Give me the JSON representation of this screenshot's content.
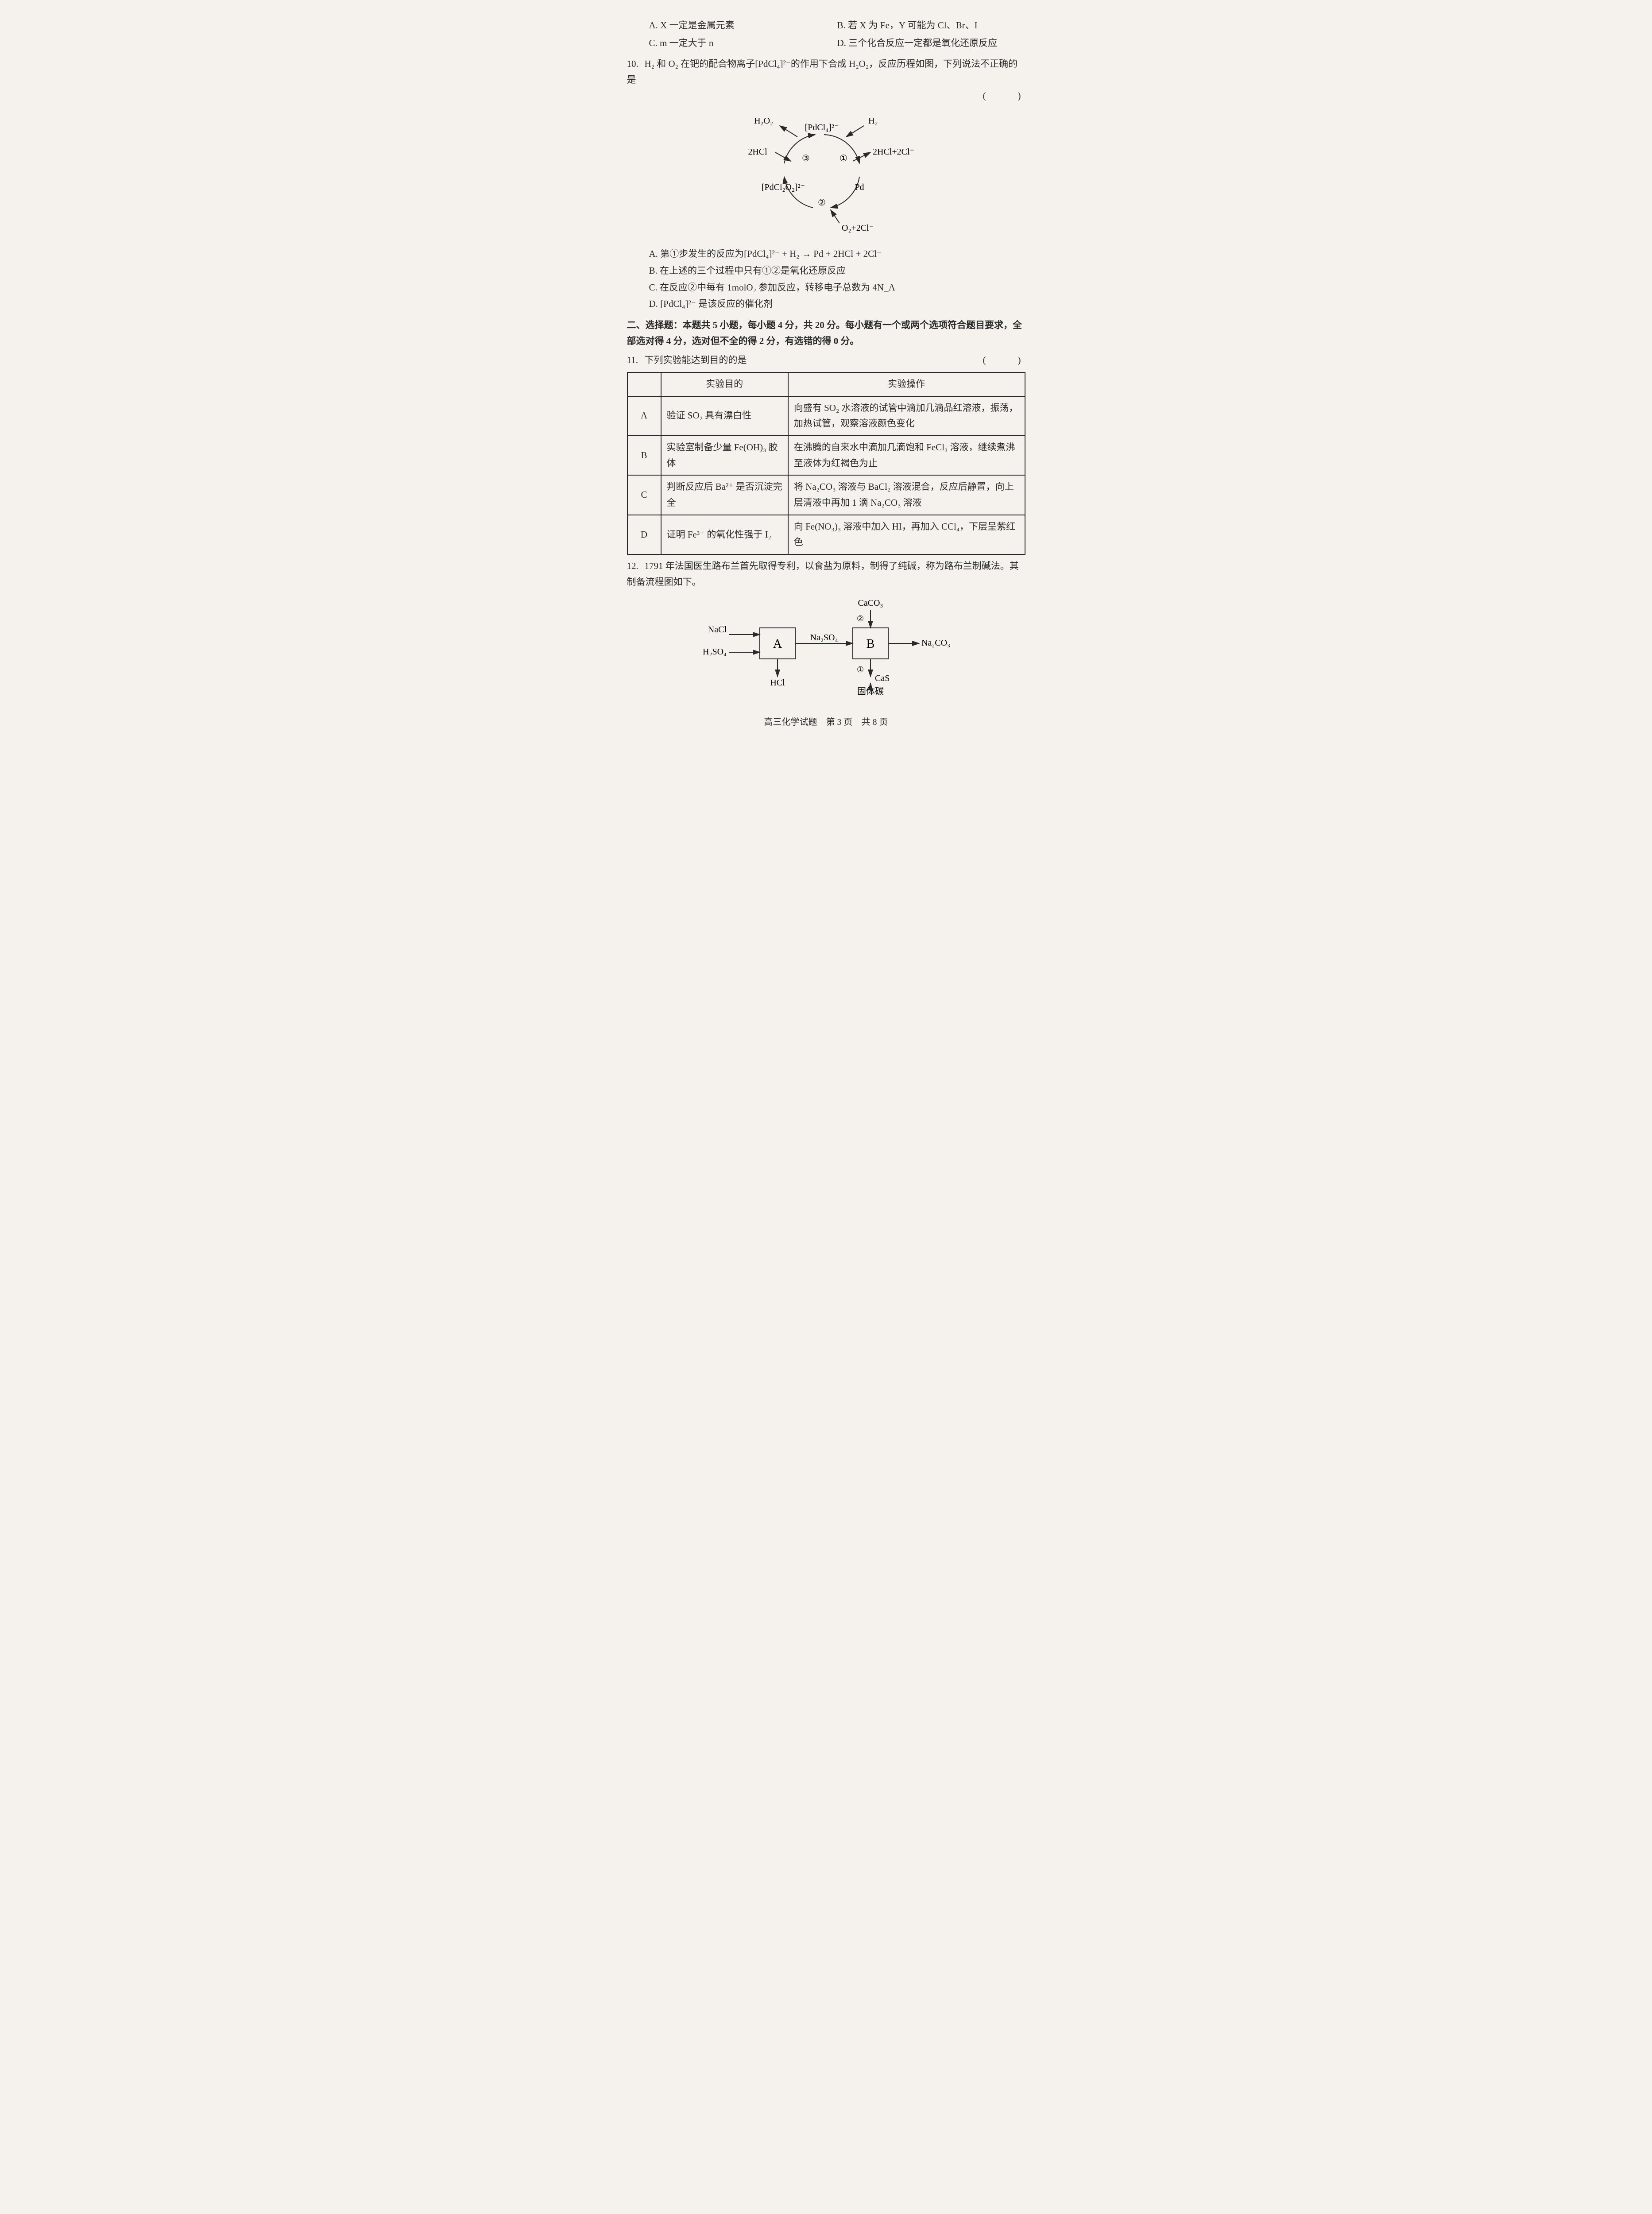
{
  "q9_options": {
    "A": "A. X 一定是金属元素",
    "B": "B. 若 X 为 Fe，Y 可能为 Cl、Br、I",
    "C": "C. m 一定大于 n",
    "D": "D. 三个化合反应一定都是氧化还原反应"
  },
  "q10": {
    "num": "10.",
    "stem": "H₂ 和 O₂ 在钯的配合物离子[PdCl₄]²⁻的作用下合成 H₂O₂，反应历程如图，下列说法不正确的是",
    "paren": "(　　)",
    "diagram": {
      "labels": {
        "H2O2": "H₂O₂",
        "PdCl4": "[PdCl₄]²⁻",
        "H2": "H₂",
        "2HCl_left": "2HCl",
        "circ3": "③",
        "circ1": "①",
        "right_prod": "2HCl+2Cl⁻",
        "PdCl2O2": "[PdCl₂O₂]²⁻",
        "Pd": "Pd",
        "circ2": "②",
        "O2_2Cl": "O₂+2Cl⁻"
      },
      "style": {
        "font_size": 20,
        "stroke": "#2a2a2a",
        "stroke_width": 2,
        "arrow_size": 8
      }
    },
    "options": {
      "A": "A. 第①步发生的反应为[PdCl₄]²⁻ + H₂ → Pd + 2HCl + 2Cl⁻",
      "B": "B. 在上述的三个过程中只有①②是氧化还原反应",
      "C": "C. 在反应②中每有 1molO₂ 参加反应，转移电子总数为 4N_A",
      "D": "D. [PdCl₄]²⁻ 是该反应的催化剂"
    }
  },
  "section2": {
    "header": "二、选择题：本题共 5 小题，每小题 4 分，共 20 分。每小题有一个或两个选项符合题目要求，全部选对得 4 分，选对但不全的得 2 分，有选错的得 0 分。"
  },
  "q11": {
    "num": "11.",
    "stem": "下列实验能达到目的的是",
    "paren": "(　　)",
    "table": {
      "headers": [
        "",
        "实验目的",
        "实验操作"
      ],
      "rows": [
        {
          "label": "A",
          "purpose": "验证 SO₂ 具有漂白性",
          "op": "向盛有 SO₂ 水溶液的试管中滴加几滴品红溶液，振荡，加热试管，观察溶液颜色变化"
        },
        {
          "label": "B",
          "purpose": "实验室制备少量 Fe(OH)₃ 胶体",
          "op": "在沸腾的自来水中滴加几滴饱和 FeCl₃ 溶液，继续煮沸至液体为红褐色为止"
        },
        {
          "label": "C",
          "purpose": "判断反应后 Ba²⁺ 是否沉淀完全",
          "op": "将 Na₂CO₃ 溶液与 BaCl₂ 溶液混合，反应后静置，向上层清液中再加 1 滴 Na₂CO₃ 溶液"
        },
        {
          "label": "D",
          "purpose": "证明 Fe³⁺ 的氧化性强于 I₂",
          "op": "向 Fe(NO₃)₃ 溶液中加入 HI，再加入 CCl₄，下层呈紫红色"
        }
      ]
    }
  },
  "q12": {
    "num": "12.",
    "stem": "1791 年法国医生路布兰首先取得专利，以食盐为原料，制得了纯碱，称为路布兰制碱法。其制备流程图如下。",
    "flow": {
      "inputs_A": [
        "NaCl",
        "H₂SO₄"
      ],
      "boxA": "A",
      "A_down": "HCl",
      "A_to_B": "Na₂SO₄",
      "B_top": "CaCO₃",
      "B_top_num": "②",
      "boxB": "B",
      "B_out": "Na₂CO₃",
      "B_down_num": "①",
      "B_down": "CaS",
      "B_bottom": "固体碳"
    }
  },
  "footer": "高三化学试题　第 3 页　共 8 页"
}
